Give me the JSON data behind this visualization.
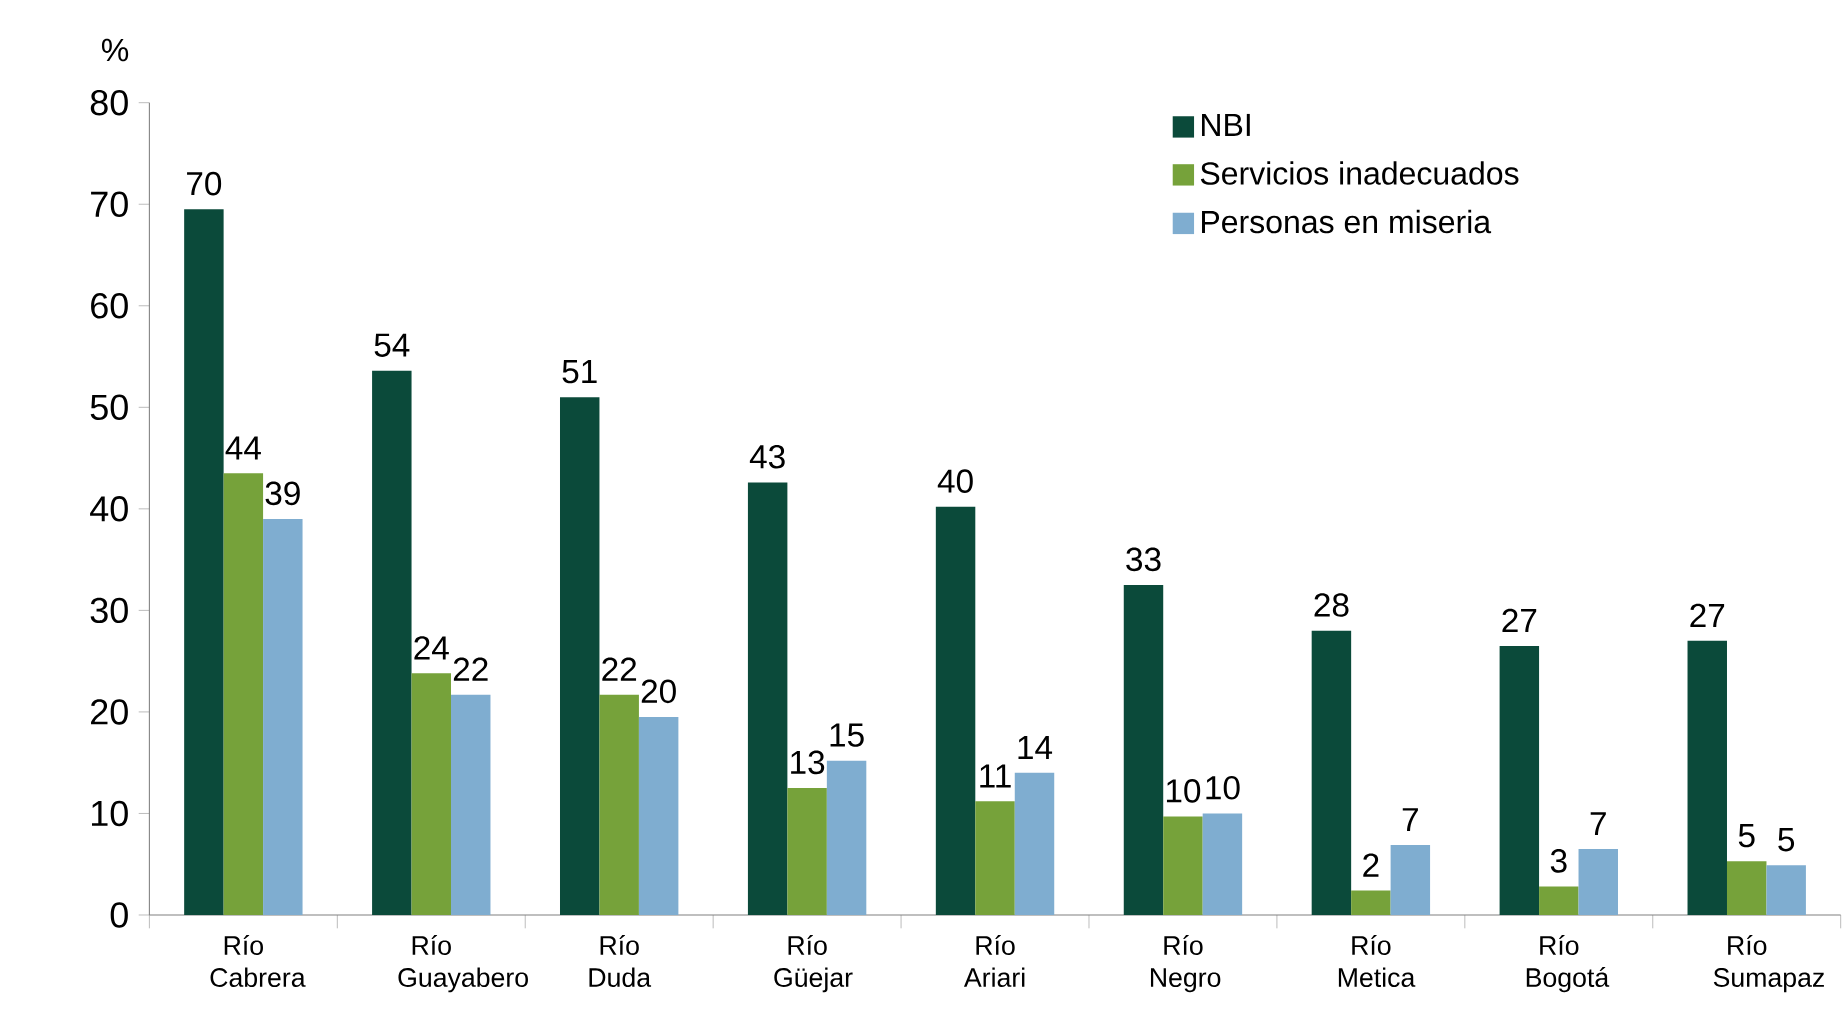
{
  "chart_data": {
    "type": "bar",
    "ylabel": "%",
    "categories": [
      "Río Cabrera",
      "Río Guayabero",
      "Río Duda",
      "Río Güejar",
      "Río Ariari",
      "Río Negro",
      "Río Metica",
      "Río Bogotá",
      "Río Sumapaz"
    ],
    "series": [
      {
        "name": "NBI",
        "color": "#0b4a3a",
        "values": [
          69.5,
          53.6,
          51.0,
          42.6,
          40.2,
          32.5,
          28.0,
          26.5,
          27.0
        ],
        "value_labels": [
          "70",
          "54",
          "51",
          "43",
          "40",
          "33",
          "28",
          "27",
          "27"
        ]
      },
      {
        "name": "Servicios inadecuados",
        "color": "#76a23a",
        "values": [
          43.5,
          23.8,
          21.7,
          12.5,
          11.2,
          9.7,
          2.4,
          2.8,
          5.3
        ],
        "value_labels": [
          "44",
          "24",
          "22",
          "13",
          "11",
          "10",
          "2",
          "3",
          "5"
        ]
      },
      {
        "name": "Personas en miseria",
        "color": "#7fadd0",
        "values": [
          39.0,
          21.7,
          19.5,
          15.2,
          14.0,
          10.0,
          6.9,
          6.5,
          4.9
        ],
        "value_labels": [
          "39",
          "22",
          "20",
          "15",
          "14",
          "10",
          "7",
          "7",
          "5"
        ]
      }
    ],
    "ylim": [
      0,
      80
    ],
    "yticks": [
      0,
      10,
      20,
      30,
      40,
      50,
      60,
      70,
      80
    ],
    "legend": "top right",
    "grid": false
  }
}
